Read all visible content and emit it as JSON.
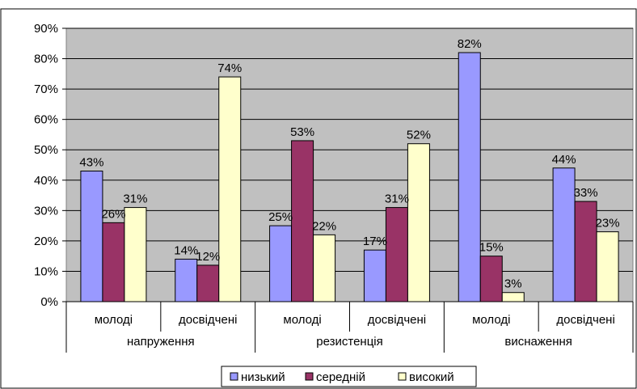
{
  "chart_data": {
    "type": "bar",
    "groups": [
      {
        "label": "напруження",
        "categories": [
          "молоді",
          "досвідчені"
        ]
      },
      {
        "label": "резистенція",
        "categories": [
          "молоді",
          "досвідчені"
        ]
      },
      {
        "label": "виснаження",
        "categories": [
          "молоді",
          "досвідчені"
        ]
      }
    ],
    "categories": [
      "молоді",
      "досвідчені",
      "молоді",
      "досвідчені",
      "молоді",
      "досвідчені"
    ],
    "series": [
      {
        "name": "низький",
        "color": "#9999FF",
        "values": [
          43,
          14,
          25,
          17,
          82,
          44
        ]
      },
      {
        "name": "середній",
        "color": "#993366",
        "values": [
          26,
          12,
          53,
          31,
          15,
          33
        ]
      },
      {
        "name": "високий",
        "color": "#FFFFCC",
        "values": [
          31,
          74,
          22,
          52,
          3,
          23
        ]
      }
    ],
    "value_suffix": "%",
    "yticks": [
      "0%",
      "10%",
      "20%",
      "30%",
      "40%",
      "50%",
      "60%",
      "70%",
      "80%",
      "90%"
    ],
    "ylim": [
      0,
      90
    ],
    "grid": true,
    "plot_background": "#C0C0C0",
    "legend_position": "bottom",
    "title": "",
    "xlabel": "",
    "ylabel": ""
  }
}
